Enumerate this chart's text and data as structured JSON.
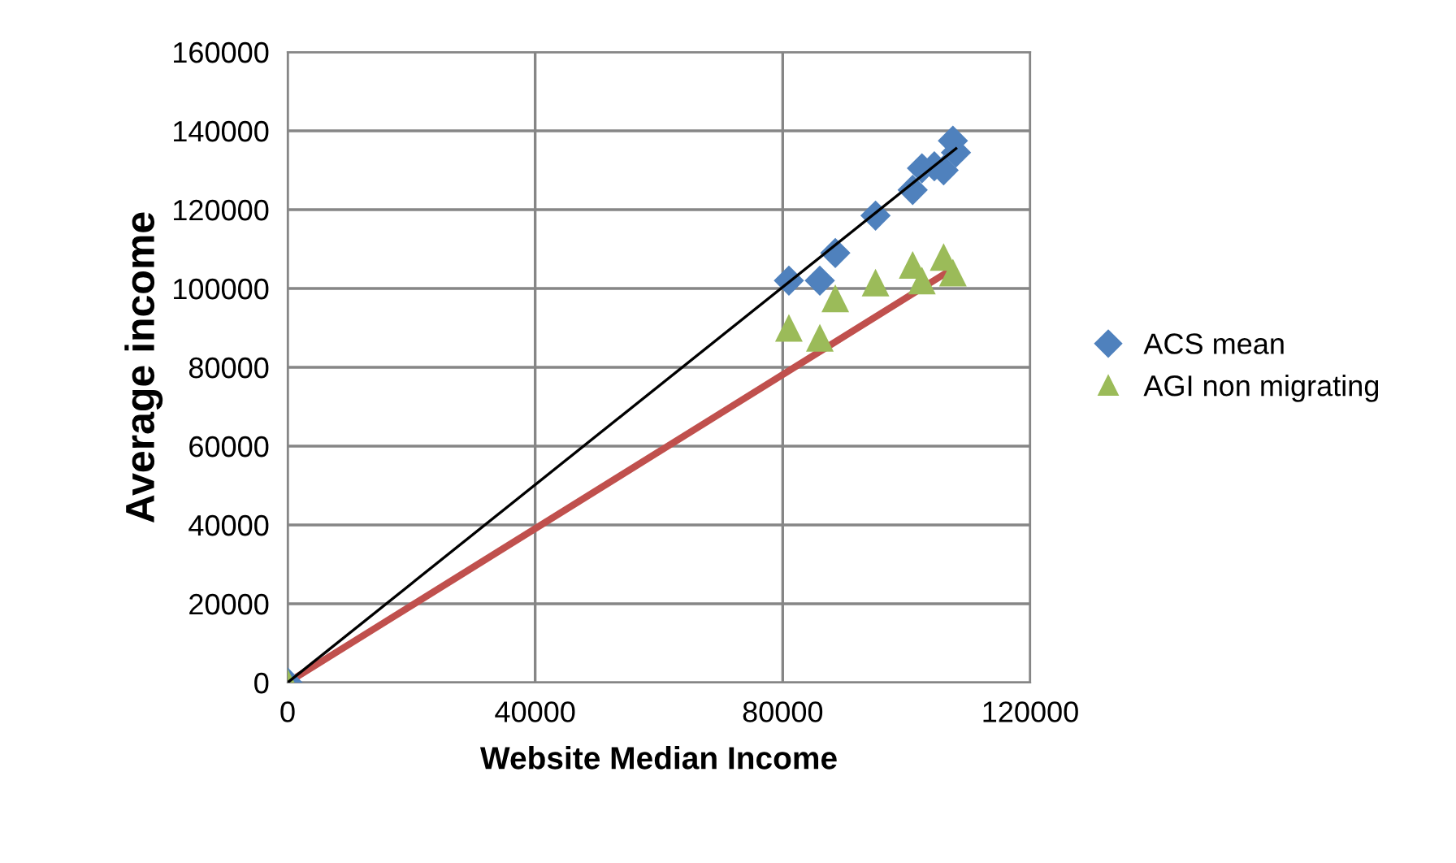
{
  "chart_data": {
    "type": "scatter",
    "xlabel": "Website Median Income",
    "ylabel": "Average income",
    "xlim": [
      0,
      120000
    ],
    "ylim": [
      0,
      160000
    ],
    "xticks": [
      0,
      40000,
      80000,
      120000
    ],
    "yticks": [
      0,
      20000,
      40000,
      60000,
      80000,
      100000,
      120000,
      140000,
      160000
    ],
    "grid": true,
    "legend": "right",
    "series": [
      {
        "name": "ACS mean",
        "color": "#4f81bd",
        "marker": "diamond",
        "x": [
          0,
          81000,
          86000,
          88500,
          95000,
          101000,
          102500,
          104500,
          106000,
          108000,
          107500
        ],
        "values": [
          0,
          102000,
          102000,
          109000,
          118500,
          125000,
          130500,
          131000,
          130000,
          134500,
          137500
        ]
      },
      {
        "name": "AGI non migrating",
        "color": "#9bbb59",
        "marker": "triangle",
        "x": [
          0,
          81000,
          86000,
          88500,
          95000,
          101000,
          102500,
          106000,
          107500
        ],
        "values": [
          0,
          90000,
          87500,
          97500,
          101500,
          106000,
          102000,
          108000,
          104000
        ]
      },
      {
        "type": "line",
        "color": "#c0504d",
        "x": [
          0,
          107500
        ],
        "values": [
          0,
          105000
        ]
      },
      {
        "type": "line",
        "color": "#000000",
        "x": [
          0,
          108000
        ],
        "values": [
          0,
          135500
        ]
      }
    ]
  }
}
